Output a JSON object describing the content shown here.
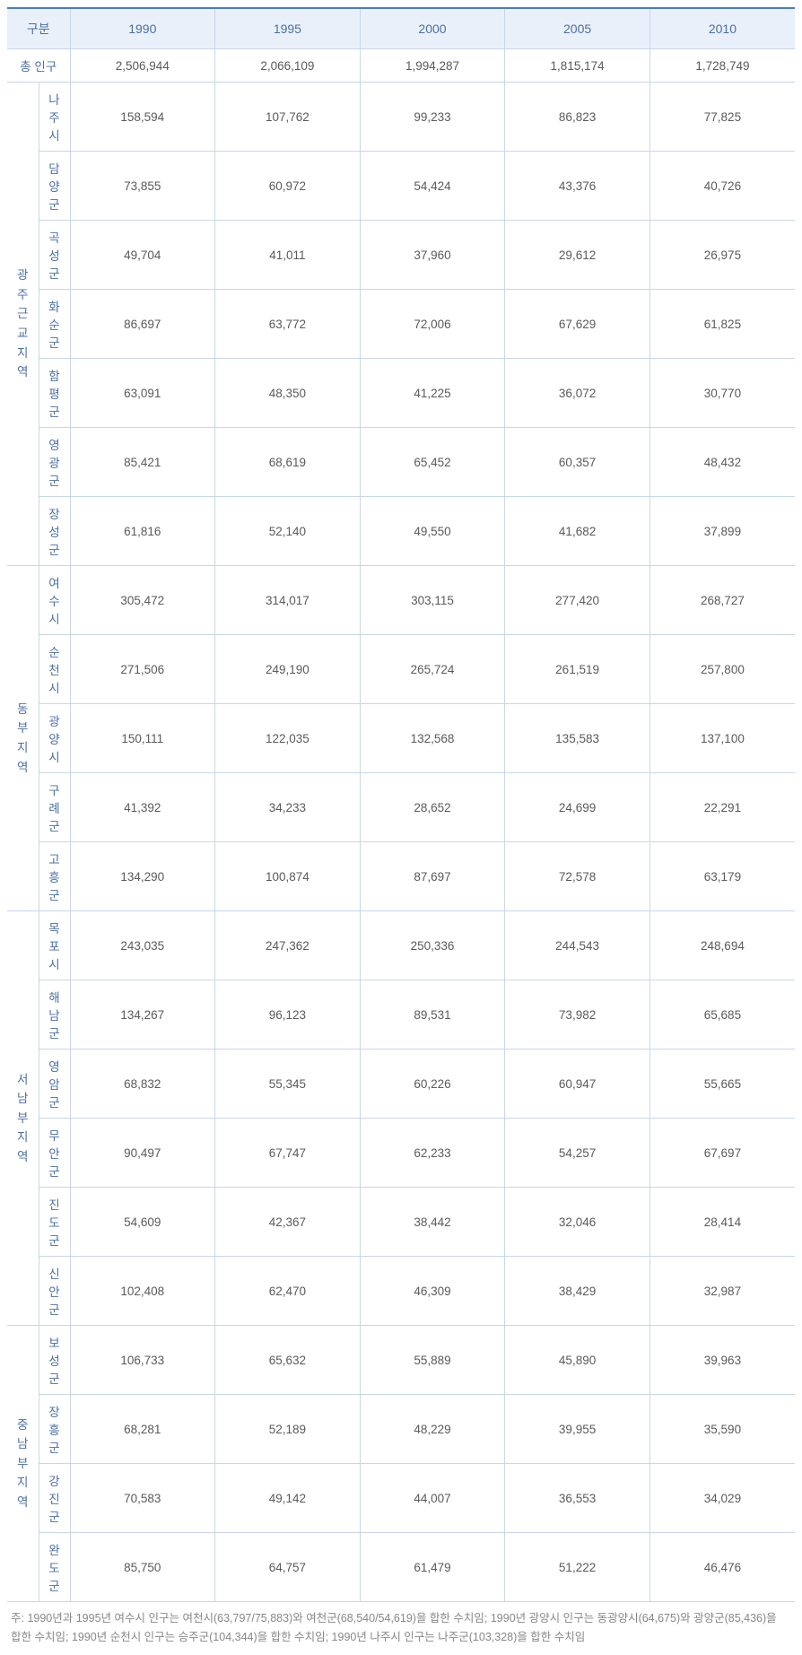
{
  "headers": {
    "category": "구분",
    "y1990": "1990",
    "y1995": "1995",
    "y2000": "2000",
    "y2005": "2005",
    "y2010": "2010"
  },
  "total": {
    "label": "총 인구",
    "v1990": "2,506,944",
    "v1995": "2,066,109",
    "v2000": "1,994,287",
    "v2005": "1,815,174",
    "v2010": "1,728,749"
  },
  "groups": [
    {
      "name": "광주\n근교\n지역",
      "rows": [
        {
          "region": "나주시",
          "v1990": "158,594",
          "v1995": "107,762",
          "v2000": "99,233",
          "v2005": "86,823",
          "v2010": "77,825"
        },
        {
          "region": "담양군",
          "v1990": "73,855",
          "v1995": "60,972",
          "v2000": "54,424",
          "v2005": "43,376",
          "v2010": "40,726"
        },
        {
          "region": "곡성군",
          "v1990": "49,704",
          "v1995": "41,011",
          "v2000": "37,960",
          "v2005": "29,612",
          "v2010": "26,975"
        },
        {
          "region": "화순군",
          "v1990": "86,697",
          "v1995": "63,772",
          "v2000": "72,006",
          "v2005": "67,629",
          "v2010": "61,825"
        },
        {
          "region": "함평군",
          "v1990": "63,091",
          "v1995": "48,350",
          "v2000": "41,225",
          "v2005": "36,072",
          "v2010": "30,770"
        },
        {
          "region": "영광군",
          "v1990": "85,421",
          "v1995": "68,619",
          "v2000": "65,452",
          "v2005": "60,357",
          "v2010": "48,432"
        },
        {
          "region": "장성군",
          "v1990": "61,816",
          "v1995": "52,140",
          "v2000": "49,550",
          "v2005": "41,682",
          "v2010": "37,899"
        }
      ]
    },
    {
      "name": "동부\n지역",
      "rows": [
        {
          "region": "여수시",
          "v1990": "305,472",
          "v1995": "314,017",
          "v2000": "303,115",
          "v2005": "277,420",
          "v2010": "268,727"
        },
        {
          "region": "순천시",
          "v1990": "271,506",
          "v1995": "249,190",
          "v2000": "265,724",
          "v2005": "261,519",
          "v2010": "257,800"
        },
        {
          "region": "광양시",
          "v1990": "150,111",
          "v1995": "122,035",
          "v2000": "132,568",
          "v2005": "135,583",
          "v2010": "137,100"
        },
        {
          "region": "구례군",
          "v1990": "41,392",
          "v1995": "34,233",
          "v2000": "28,652",
          "v2005": "24,699",
          "v2010": "22,291"
        },
        {
          "region": "고흥군",
          "v1990": "134,290",
          "v1995": "100,874",
          "v2000": "87,697",
          "v2005": "72,578",
          "v2010": "63,179"
        }
      ]
    },
    {
      "name": "서남부\n지역",
      "rows": [
        {
          "region": "목포시",
          "v1990": "243,035",
          "v1995": "247,362",
          "v2000": "250,336",
          "v2005": "244,543",
          "v2010": "248,694"
        },
        {
          "region": "해남군",
          "v1990": "134,267",
          "v1995": "96,123",
          "v2000": "89,531",
          "v2005": "73,982",
          "v2010": "65,685"
        },
        {
          "region": "영암군",
          "v1990": "68,832",
          "v1995": "55,345",
          "v2000": "60,226",
          "v2005": "60,947",
          "v2010": "55,665"
        },
        {
          "region": "무안군",
          "v1990": "90,497",
          "v1995": "67,747",
          "v2000": "62,233",
          "v2005": "54,257",
          "v2010": "67,697"
        },
        {
          "region": "진도군",
          "v1990": "54,609",
          "v1995": "42,367",
          "v2000": "38,442",
          "v2005": "32,046",
          "v2010": "28,414"
        },
        {
          "region": "신안군",
          "v1990": "102,408",
          "v1995": "62,470",
          "v2000": "46,309",
          "v2005": "38,429",
          "v2010": "32,987"
        }
      ]
    },
    {
      "name": "중남부\n지역",
      "rows": [
        {
          "region": "보성군",
          "v1990": "106,733",
          "v1995": "65,632",
          "v2000": "55,889",
          "v2005": "45,890",
          "v2010": "39,963"
        },
        {
          "region": "장흥군",
          "v1990": "68,281",
          "v1995": "52,189",
          "v2000": "48,229",
          "v2005": "39,955",
          "v2010": "35,590"
        },
        {
          "region": "강진군",
          "v1990": "70,583",
          "v1995": "49,142",
          "v2000": "44,007",
          "v2005": "36,553",
          "v2010": "34,029"
        },
        {
          "region": "완도군",
          "v1990": "85,750",
          "v1995": "64,757",
          "v2000": "61,479",
          "v2005": "51,222",
          "v2010": "46,476"
        }
      ]
    }
  ],
  "footnote": "주: 1990년과 1995년 여수시 인구는 여천시(63,797/75,883)와 여천군(68,540/54,619)을 합한 수치임; 1990년 광양시 인구는 동광양시(64,675)와 광양군(85,436)을 합한 수치임; 1990년 순천시 인구는 승주군(104,344)을 합한 수치임; 1990년 나주시 인구는 나주군(103,328)을 합한 수치임",
  "colors": {
    "header_border_top": "#4a7bc4",
    "header_bg": "#eaf0fa",
    "header_text": "#4a6fa5",
    "cell_border": "#c8d6eb",
    "cell_text": "#5a5a5a",
    "footnote_text": "#888888",
    "background": "#ffffff"
  },
  "typography": {
    "header_fontsize": 14,
    "cell_fontsize": 13.5,
    "footnote_fontsize": 12.5,
    "font_family": "Malgun Gothic"
  }
}
